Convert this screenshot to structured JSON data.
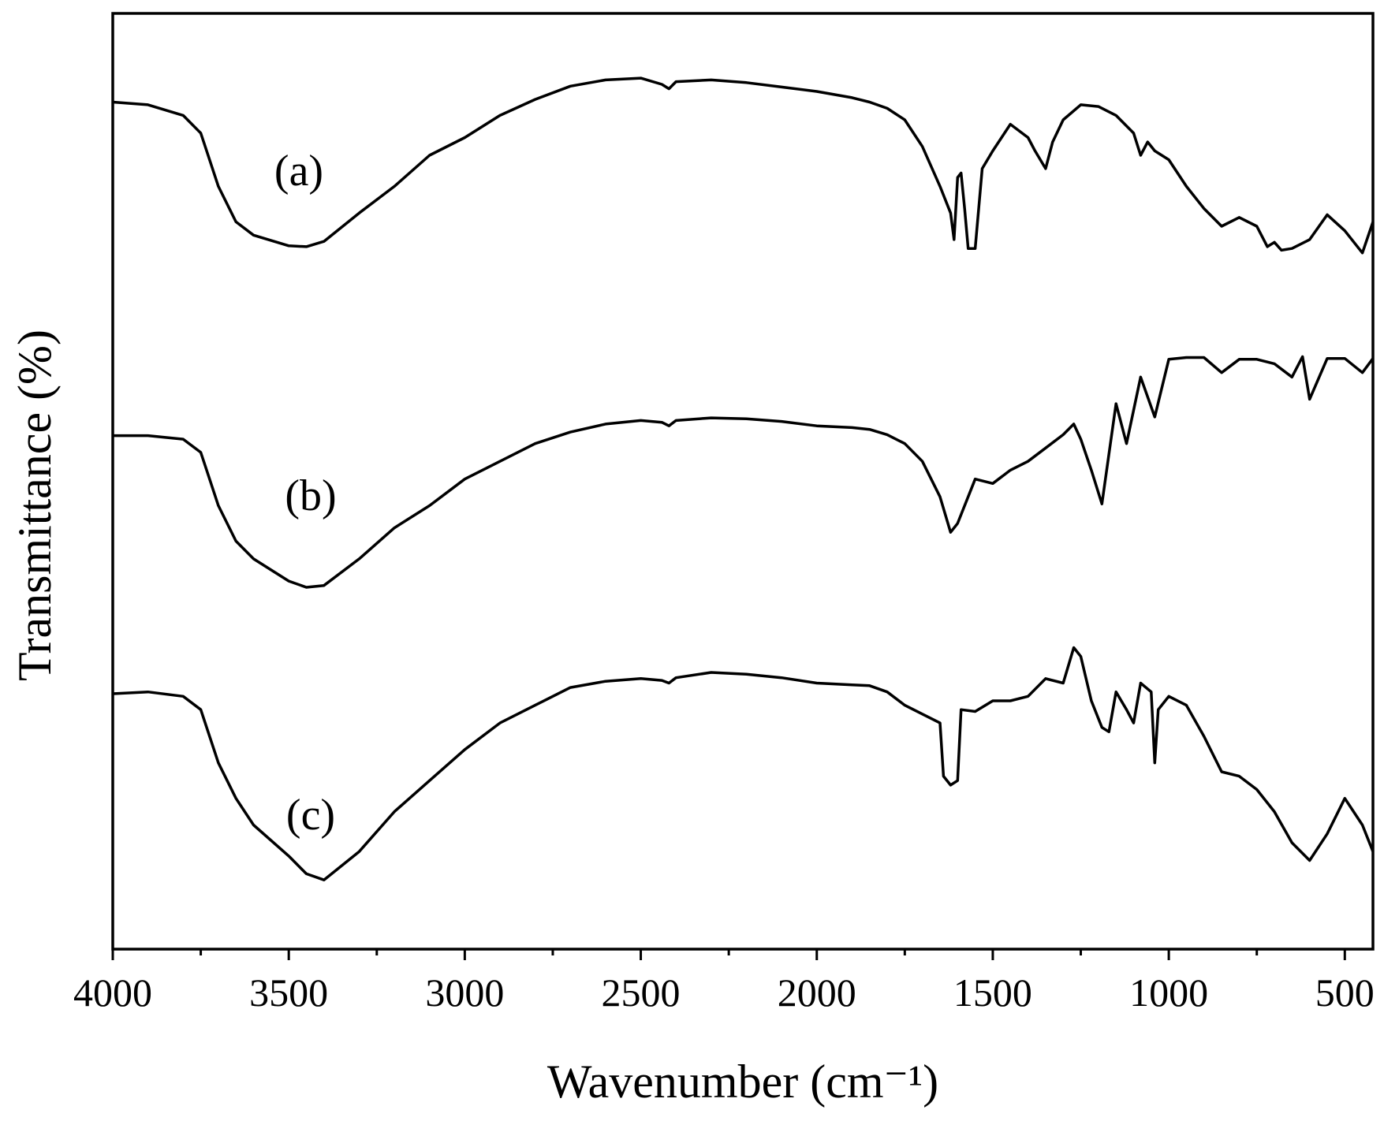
{
  "chart_data": {
    "type": "line",
    "xlabel": "Wavenumber (cm⁻¹)",
    "ylabel": "Transmittance (%)",
    "xlim": [
      4000,
      420
    ],
    "ylim": [
      0,
      105.5
    ],
    "xticks": [
      4000,
      3500,
      3000,
      2500,
      2000,
      1500,
      1000,
      500
    ],
    "xminorticks": [
      3750,
      3250,
      2750,
      2250,
      1750,
      1250,
      750
    ],
    "annotations": [
      "(a)",
      "(b)",
      "(c)"
    ],
    "series": [
      {
        "name": "(a)",
        "color": "#000000",
        "x": [
          4000,
          3900,
          3800,
          3750,
          3700,
          3650,
          3600,
          3500,
          3450,
          3400,
          3300,
          3200,
          3100,
          3000,
          2900,
          2800,
          2700,
          2600,
          2500,
          2440,
          2420,
          2400,
          2300,
          2200,
          2100,
          2000,
          1900,
          1850,
          1800,
          1750,
          1700,
          1650,
          1620,
          1610,
          1600,
          1590,
          1580,
          1570,
          1550,
          1530,
          1500,
          1450,
          1400,
          1380,
          1350,
          1330,
          1300,
          1250,
          1200,
          1150,
          1100,
          1080,
          1060,
          1040,
          1000,
          950,
          900,
          850,
          800,
          750,
          720,
          700,
          680,
          650,
          600,
          550,
          500,
          450,
          420
        ],
        "values": [
          95.5,
          95.2,
          94,
          92,
          86,
          82,
          80.5,
          79.3,
          79.2,
          79.8,
          83,
          86,
          89.5,
          91.5,
          94,
          95.8,
          97.3,
          98,
          98.2,
          97.5,
          97,
          97.8,
          98,
          97.7,
          97.2,
          96.7,
          96,
          95.5,
          94.8,
          93.5,
          90.5,
          86,
          83,
          80,
          87,
          87.5,
          83.5,
          79,
          79,
          88,
          90,
          93,
          91.5,
          90,
          88,
          91,
          93.5,
          95.2,
          95,
          94,
          92,
          89.5,
          91,
          90,
          89,
          86,
          83.5,
          81.5,
          82.5,
          81.5,
          79.2,
          79.7,
          78.8,
          79,
          80,
          82.8,
          81,
          78.5,
          82
        ]
      },
      {
        "name": "(b)",
        "color": "#000000",
        "x": [
          4000,
          3900,
          3800,
          3750,
          3700,
          3650,
          3600,
          3500,
          3450,
          3400,
          3300,
          3200,
          3100,
          3000,
          2900,
          2800,
          2700,
          2600,
          2500,
          2440,
          2420,
          2400,
          2300,
          2200,
          2100,
          2000,
          1900,
          1850,
          1800,
          1750,
          1700,
          1650,
          1620,
          1600,
          1550,
          1500,
          1450,
          1400,
          1350,
          1300,
          1270,
          1250,
          1220,
          1190,
          1150,
          1120,
          1080,
          1040,
          1000,
          950,
          900,
          850,
          800,
          750,
          700,
          650,
          620,
          600,
          550,
          500,
          450,
          420
        ],
        "values": [
          57.9,
          57.9,
          57.5,
          56,
          50,
          46,
          44,
          41.5,
          40.8,
          41,
          44,
          47.5,
          50,
          53,
          55,
          57,
          58.3,
          59.2,
          59.6,
          59.4,
          59,
          59.6,
          59.9,
          59.8,
          59.5,
          59,
          58.8,
          58.6,
          58,
          57,
          55,
          51,
          47,
          48,
          53,
          52.5,
          54,
          55,
          56.5,
          58,
          59.2,
          57.5,
          54,
          50.2,
          61.5,
          57,
          64.5,
          60,
          66.5,
          66.7,
          66.7,
          65,
          66.5,
          66.5,
          66,
          64.5,
          66.8,
          62,
          66.6,
          66.6,
          65,
          66.6
        ]
      },
      {
        "name": "(c)",
        "color": "#000000",
        "x": [
          4000,
          3900,
          3800,
          3750,
          3700,
          3650,
          3600,
          3500,
          3450,
          3400,
          3300,
          3200,
          3100,
          3000,
          2900,
          2800,
          2700,
          2600,
          2500,
          2440,
          2420,
          2400,
          2300,
          2200,
          2100,
          2000,
          1900,
          1850,
          1800,
          1750,
          1700,
          1650,
          1640,
          1620,
          1600,
          1590,
          1550,
          1500,
          1450,
          1400,
          1350,
          1300,
          1270,
          1250,
          1220,
          1190,
          1170,
          1150,
          1120,
          1100,
          1080,
          1050,
          1040,
          1030,
          1000,
          950,
          900,
          850,
          800,
          750,
          700,
          650,
          600,
          550,
          500,
          450,
          420
        ],
        "values": [
          28.8,
          29,
          28.5,
          27,
          21,
          17,
          14,
          10.5,
          8.5,
          7.8,
          11,
          15.5,
          19,
          22.5,
          25.5,
          27.5,
          29.5,
          30.2,
          30.5,
          30.3,
          30,
          30.6,
          31.2,
          31,
          30.6,
          30,
          29.8,
          29.7,
          29,
          27.5,
          26.5,
          25.5,
          19.5,
          18.5,
          19,
          27,
          26.8,
          28,
          28,
          28.5,
          30.5,
          30,
          34,
          33,
          28,
          25,
          24.5,
          29,
          27,
          25.5,
          30,
          29,
          21,
          27,
          28.5,
          27.5,
          24,
          20,
          19.5,
          18,
          15.5,
          12,
          10,
          13,
          17,
          14,
          11
        ]
      }
    ]
  }
}
